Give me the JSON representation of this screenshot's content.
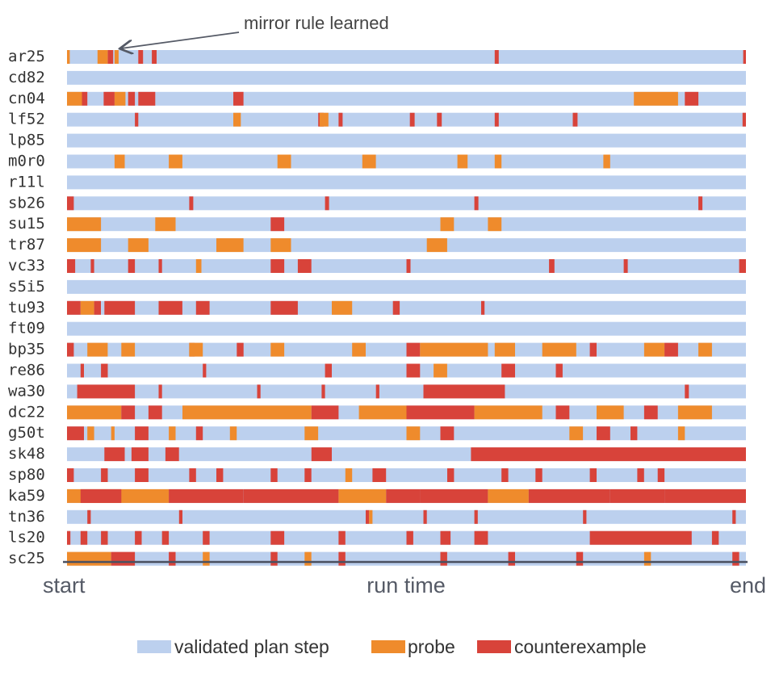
{
  "chart_data": {
    "type": "timeline",
    "title": "",
    "x_axis": {
      "start_label": "start",
      "label": "run time",
      "end_label": "end"
    },
    "annotation": {
      "text": "mirror rule learned",
      "row": "ar25",
      "at_fraction": 0.075
    },
    "legend": {
      "placement": "bottom",
      "entries": [
        {
          "key": "validated",
          "label": "validated plan step",
          "color": "#bcd0ee"
        },
        {
          "key": "probe",
          "label": "probe",
          "color": "#ef8b2c"
        },
        {
          "key": "counterexample",
          "label": "counterexample",
          "color": "#d8433a"
        }
      ]
    },
    "rows": [
      {
        "name": "ar25",
        "segments": [
          [
            0,
            0.004,
            "o"
          ],
          [
            0.045,
            0.06,
            "o"
          ],
          [
            0.06,
            0.068,
            "r"
          ],
          [
            0.07,
            0.076,
            "o"
          ],
          [
            0.105,
            0.112,
            "r"
          ],
          [
            0.125,
            0.132,
            "r"
          ],
          [
            0.63,
            0.636,
            "r"
          ],
          [
            0.996,
            1,
            "r"
          ]
        ]
      },
      {
        "name": "cd82",
        "segments": []
      },
      {
        "name": "cn04",
        "segments": [
          [
            0,
            0.022,
            "o"
          ],
          [
            0.022,
            0.03,
            "r"
          ],
          [
            0.054,
            0.07,
            "r"
          ],
          [
            0.07,
            0.086,
            "o"
          ],
          [
            0.09,
            0.1,
            "r"
          ],
          [
            0.105,
            0.13,
            "r"
          ],
          [
            0.245,
            0.26,
            "r"
          ],
          [
            0.835,
            0.9,
            "o"
          ],
          [
            0.91,
            0.93,
            "r"
          ]
        ]
      },
      {
        "name": "lf52",
        "segments": [
          [
            0.1,
            0.105,
            "r"
          ],
          [
            0.245,
            0.256,
            "o"
          ],
          [
            0.37,
            0.378,
            "r"
          ],
          [
            0.372,
            0.385,
            "o"
          ],
          [
            0.4,
            0.406,
            "r"
          ],
          [
            0.505,
            0.512,
            "r"
          ],
          [
            0.545,
            0.552,
            "r"
          ],
          [
            0.63,
            0.636,
            "r"
          ],
          [
            0.745,
            0.752,
            "r"
          ],
          [
            0.995,
            1,
            "r"
          ]
        ]
      },
      {
        "name": "lp85",
        "segments": []
      },
      {
        "name": "m0r0",
        "segments": [
          [
            0.07,
            0.085,
            "o"
          ],
          [
            0.15,
            0.17,
            "o"
          ],
          [
            0.31,
            0.33,
            "o"
          ],
          [
            0.435,
            0.455,
            "o"
          ],
          [
            0.575,
            0.59,
            "o"
          ],
          [
            0.63,
            0.64,
            "o"
          ],
          [
            0.79,
            0.8,
            "o"
          ]
        ]
      },
      {
        "name": "r11l",
        "segments": []
      },
      {
        "name": "sb26",
        "segments": [
          [
            0,
            0.01,
            "r"
          ],
          [
            0.18,
            0.186,
            "r"
          ],
          [
            0.38,
            0.386,
            "r"
          ],
          [
            0.6,
            0.606,
            "r"
          ],
          [
            0.93,
            0.936,
            "r"
          ]
        ]
      },
      {
        "name": "su15",
        "segments": [
          [
            0,
            0.05,
            "o"
          ],
          [
            0.13,
            0.16,
            "o"
          ],
          [
            0.3,
            0.32,
            "r"
          ],
          [
            0.55,
            0.57,
            "o"
          ],
          [
            0.62,
            0.64,
            "o"
          ]
        ]
      },
      {
        "name": "tr87",
        "segments": [
          [
            0,
            0.05,
            "o"
          ],
          [
            0.09,
            0.12,
            "o"
          ],
          [
            0.22,
            0.26,
            "o"
          ],
          [
            0.3,
            0.33,
            "o"
          ],
          [
            0.53,
            0.56,
            "o"
          ]
        ]
      },
      {
        "name": "vc33",
        "segments": [
          [
            0,
            0.012,
            "r"
          ],
          [
            0.035,
            0.04,
            "r"
          ],
          [
            0.09,
            0.1,
            "r"
          ],
          [
            0.135,
            0.14,
            "r"
          ],
          [
            0.19,
            0.198,
            "o"
          ],
          [
            0.3,
            0.32,
            "r"
          ],
          [
            0.34,
            0.36,
            "r"
          ],
          [
            0.5,
            0.506,
            "r"
          ],
          [
            0.71,
            0.718,
            "r"
          ],
          [
            0.82,
            0.826,
            "r"
          ],
          [
            0.99,
            1,
            "r"
          ]
        ]
      },
      {
        "name": "s5i5",
        "segments": []
      },
      {
        "name": "tu93",
        "segments": [
          [
            0,
            0.02,
            "r"
          ],
          [
            0.02,
            0.04,
            "o"
          ],
          [
            0.04,
            0.05,
            "r"
          ],
          [
            0.055,
            0.1,
            "r"
          ],
          [
            0.135,
            0.17,
            "r"
          ],
          [
            0.19,
            0.21,
            "r"
          ],
          [
            0.3,
            0.34,
            "r"
          ],
          [
            0.39,
            0.42,
            "o"
          ],
          [
            0.48,
            0.49,
            "r"
          ],
          [
            0.61,
            0.615,
            "r"
          ]
        ]
      },
      {
        "name": "ft09",
        "segments": []
      },
      {
        "name": "bp35",
        "segments": [
          [
            0,
            0.01,
            "r"
          ],
          [
            0.03,
            0.06,
            "o"
          ],
          [
            0.08,
            0.1,
            "o"
          ],
          [
            0.18,
            0.188,
            "r"
          ],
          [
            0.18,
            0.2,
            "o"
          ],
          [
            0.25,
            0.26,
            "r"
          ],
          [
            0.3,
            0.32,
            "o"
          ],
          [
            0.42,
            0.44,
            "o"
          ],
          [
            0.5,
            0.52,
            "r"
          ],
          [
            0.52,
            0.62,
            "o"
          ],
          [
            0.63,
            0.66,
            "o"
          ],
          [
            0.7,
            0.75,
            "o"
          ],
          [
            0.77,
            0.78,
            "r"
          ],
          [
            0.85,
            0.88,
            "o"
          ],
          [
            0.88,
            0.9,
            "r"
          ],
          [
            0.93,
            0.95,
            "o"
          ]
        ]
      },
      {
        "name": "re86",
        "segments": [
          [
            0.02,
            0.025,
            "r"
          ],
          [
            0.05,
            0.06,
            "r"
          ],
          [
            0.2,
            0.205,
            "r"
          ],
          [
            0.38,
            0.39,
            "r"
          ],
          [
            0.5,
            0.52,
            "r"
          ],
          [
            0.54,
            0.56,
            "o"
          ],
          [
            0.64,
            0.66,
            "r"
          ],
          [
            0.72,
            0.73,
            "r"
          ]
        ]
      },
      {
        "name": "wa30",
        "segments": [
          [
            0.015,
            0.1,
            "r"
          ],
          [
            0.135,
            0.14,
            "r"
          ],
          [
            0.28,
            0.285,
            "r"
          ],
          [
            0.375,
            0.38,
            "r"
          ],
          [
            0.455,
            0.46,
            "r"
          ],
          [
            0.525,
            0.645,
            "r"
          ],
          [
            0.91,
            0.916,
            "r"
          ]
        ]
      },
      {
        "name": "dc22",
        "segments": [
          [
            0,
            0.08,
            "o"
          ],
          [
            0.08,
            0.1,
            "r"
          ],
          [
            0.12,
            0.14,
            "r"
          ],
          [
            0.17,
            0.36,
            "o"
          ],
          [
            0.36,
            0.4,
            "r"
          ],
          [
            0.43,
            0.5,
            "o"
          ],
          [
            0.5,
            0.6,
            "r"
          ],
          [
            0.6,
            0.7,
            "o"
          ],
          [
            0.72,
            0.74,
            "r"
          ],
          [
            0.78,
            0.82,
            "o"
          ],
          [
            0.85,
            0.87,
            "r"
          ],
          [
            0.9,
            0.95,
            "o"
          ]
        ]
      },
      {
        "name": "g50t",
        "segments": [
          [
            0,
            0.025,
            "r"
          ],
          [
            0.03,
            0.04,
            "o"
          ],
          [
            0.065,
            0.07,
            "o"
          ],
          [
            0.1,
            0.12,
            "r"
          ],
          [
            0.15,
            0.16,
            "o"
          ],
          [
            0.19,
            0.2,
            "r"
          ],
          [
            0.24,
            0.25,
            "o"
          ],
          [
            0.35,
            0.37,
            "o"
          ],
          [
            0.5,
            0.52,
            "o"
          ],
          [
            0.55,
            0.57,
            "r"
          ],
          [
            0.74,
            0.76,
            "o"
          ],
          [
            0.78,
            0.8,
            "r"
          ],
          [
            0.83,
            0.84,
            "r"
          ],
          [
            0.9,
            0.91,
            "o"
          ]
        ]
      },
      {
        "name": "sk48",
        "segments": [
          [
            0.055,
            0.085,
            "r"
          ],
          [
            0.095,
            0.12,
            "r"
          ],
          [
            0.145,
            0.165,
            "r"
          ],
          [
            0.36,
            0.39,
            "r"
          ],
          [
            0.595,
            1,
            "r"
          ]
        ]
      },
      {
        "name": "sp80",
        "segments": [
          [
            0,
            0.01,
            "r"
          ],
          [
            0.05,
            0.06,
            "r"
          ],
          [
            0.1,
            0.12,
            "r"
          ],
          [
            0.18,
            0.19,
            "r"
          ],
          [
            0.22,
            0.23,
            "r"
          ],
          [
            0.3,
            0.31,
            "r"
          ],
          [
            0.35,
            0.36,
            "r"
          ],
          [
            0.41,
            0.42,
            "o"
          ],
          [
            0.45,
            0.47,
            "r"
          ],
          [
            0.56,
            0.57,
            "r"
          ],
          [
            0.64,
            0.65,
            "r"
          ],
          [
            0.69,
            0.7,
            "r"
          ],
          [
            0.77,
            0.78,
            "r"
          ],
          [
            0.84,
            0.85,
            "r"
          ],
          [
            0.87,
            0.88,
            "r"
          ]
        ]
      },
      {
        "name": "ka59",
        "segments": [
          [
            0,
            0.15,
            "o"
          ],
          [
            0.02,
            0.08,
            "r"
          ],
          [
            0.15,
            0.22,
            "r"
          ],
          [
            0.22,
            0.26,
            "r"
          ],
          [
            0.26,
            0.4,
            "r"
          ],
          [
            0.4,
            0.47,
            "o"
          ],
          [
            0.47,
            0.52,
            "r"
          ],
          [
            0.52,
            0.62,
            "r"
          ],
          [
            0.62,
            0.68,
            "o"
          ],
          [
            0.68,
            0.8,
            "r"
          ],
          [
            0.8,
            0.88,
            "r"
          ],
          [
            0.88,
            1,
            "r"
          ]
        ]
      },
      {
        "name": "tn36",
        "segments": [
          [
            0.03,
            0.035,
            "r"
          ],
          [
            0.165,
            0.17,
            "r"
          ],
          [
            0.44,
            0.445,
            "r"
          ],
          [
            0.445,
            0.45,
            "o"
          ],
          [
            0.525,
            0.53,
            "r"
          ],
          [
            0.6,
            0.605,
            "r"
          ],
          [
            0.76,
            0.765,
            "r"
          ],
          [
            0.98,
            0.985,
            "r"
          ]
        ]
      },
      {
        "name": "ls20",
        "segments": [
          [
            0,
            0.005,
            "r"
          ],
          [
            0.02,
            0.03,
            "r"
          ],
          [
            0.05,
            0.06,
            "r"
          ],
          [
            0.1,
            0.11,
            "r"
          ],
          [
            0.14,
            0.15,
            "r"
          ],
          [
            0.2,
            0.21,
            "r"
          ],
          [
            0.3,
            0.32,
            "r"
          ],
          [
            0.4,
            0.41,
            "r"
          ],
          [
            0.5,
            0.51,
            "r"
          ],
          [
            0.55,
            0.565,
            "r"
          ],
          [
            0.6,
            0.62,
            "r"
          ],
          [
            0.77,
            0.92,
            "r"
          ],
          [
            0.95,
            0.96,
            "r"
          ]
        ]
      },
      {
        "name": "sc25",
        "segments": [
          [
            0,
            0.065,
            "o"
          ],
          [
            0.065,
            0.1,
            "r"
          ],
          [
            0.15,
            0.16,
            "r"
          ],
          [
            0.2,
            0.21,
            "o"
          ],
          [
            0.3,
            0.31,
            "r"
          ],
          [
            0.35,
            0.36,
            "o"
          ],
          [
            0.4,
            0.41,
            "r"
          ],
          [
            0.55,
            0.56,
            "r"
          ],
          [
            0.65,
            0.66,
            "r"
          ],
          [
            0.75,
            0.76,
            "r"
          ],
          [
            0.85,
            0.86,
            "o"
          ],
          [
            0.98,
            0.99,
            "r"
          ]
        ]
      }
    ]
  }
}
